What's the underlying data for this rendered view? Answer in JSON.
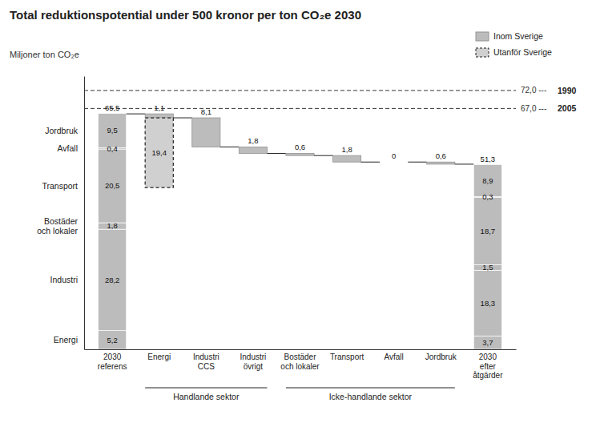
{
  "chart_data": {
    "type": "waterfall",
    "title": "Total reduktionspotential under 500 kronor per ton CO₂e 2030",
    "y_label": "Miljoner ton CO₂e",
    "categories": [
      "2030\nreferens",
      "Energi",
      "Industri\nCCS",
      "Industri\növrigt",
      "Bostäder\noch lokaler",
      "Transport",
      "Avfall",
      "Jordbruk",
      "2030\nefter\nåtgärder"
    ],
    "ylim": [
      0,
      76
    ],
    "tick_labels": "x",
    "data_labels": true,
    "legend": "upper right",
    "start": {
      "values": [
        5.2,
        28.2,
        1.8,
        20.5,
        0.4,
        9.5
      ],
      "value_labels": [
        "5,2",
        "28,2",
        "1,8",
        "20,5",
        "0,4",
        "9,5"
      ],
      "segment_labels": [
        "Energi",
        "Industri",
        "Bostäder\noch lokaler",
        "Transport",
        "Avfall",
        "Jordbruk"
      ],
      "total": 65.5,
      "total_label": "65,5",
      "color": "#bcbcbc"
    },
    "series": [
      {
        "name": "Inom Sverige",
        "color": "#bcbcbc",
        "values": [
          null,
          1.1,
          8.1,
          1.8,
          0.6,
          1.8,
          0.0,
          0.6,
          null
        ],
        "value_labels": [
          null,
          "1,1",
          "8,1",
          "1,8",
          "0,6",
          "1,8",
          "0",
          "0,6",
          null
        ]
      },
      {
        "name": "Utanför Sverige",
        "color": "#d0d0d0",
        "line_style": "dashed",
        "values": [
          null,
          19.4,
          null,
          null,
          null,
          null,
          null,
          null,
          null
        ],
        "value_labels": [
          null,
          "19,4",
          null,
          null,
          null,
          null,
          null,
          null,
          null
        ]
      }
    ],
    "end": {
      "values": [
        3.7,
        18.3,
        1.5,
        18.7,
        0.3,
        8.9
      ],
      "value_labels": [
        "3,7",
        "18,3",
        "1,5",
        "18,7",
        "0,3",
        "8,9"
      ],
      "total": 51.3,
      "total_label": "51,3",
      "color": "#bcbcbc"
    },
    "reference_lines": [
      {
        "value": 72.0,
        "label": "72,0 ---",
        "name": "1990"
      },
      {
        "value": 67.0,
        "label": "67,0 ---",
        "name": "2005"
      }
    ],
    "groups": [
      {
        "text": "Handlande sektor",
        "first": "Energi",
        "last": "Industri\növrigt"
      },
      {
        "text": "Icke-handlande sektor",
        "first": "Bostäder\noch lokaler",
        "last": "Jordbruk"
      }
    ]
  }
}
